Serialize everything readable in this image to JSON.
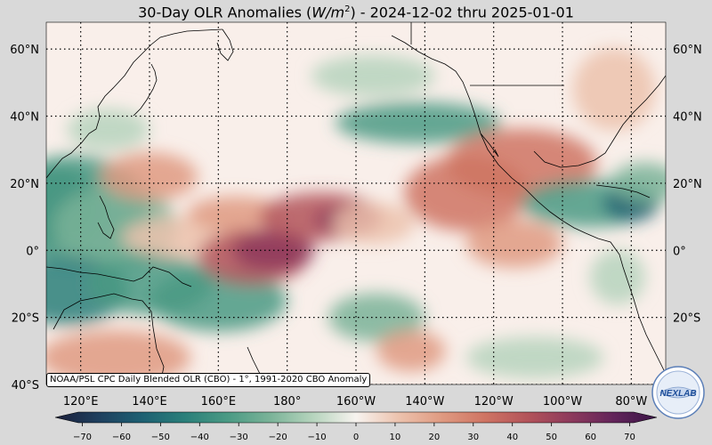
{
  "title": {
    "prefix": "30-Day OLR Anomalies (",
    "unit_base": "W/m",
    "unit_exp": "2",
    "suffix": ") - 2024-12-02 thru 2025-01-01"
  },
  "map": {
    "lat_labels": [
      "60°N",
      "40°N",
      "20°N",
      "0°",
      "20°S",
      "40°S"
    ],
    "lon_labels": [
      "120°E",
      "140°E",
      "160°E",
      "180°",
      "160°W",
      "140°W",
      "120°W",
      "100°W",
      "80°W"
    ],
    "lat_range": [
      -40,
      68
    ],
    "lon_range": [
      110,
      290
    ],
    "grid": "dotted",
    "anomalies": [
      {
        "lon": 112,
        "lat": 13,
        "v": -45,
        "rx": 14,
        "ry": 12
      },
      {
        "lon": 118,
        "lat": 12,
        "v": -35,
        "rx": 22,
        "ry": 16
      },
      {
        "lon": 130,
        "lat": 7,
        "v": -25,
        "rx": 18,
        "ry": 12
      },
      {
        "lon": 116,
        "lat": -12,
        "v": -40,
        "rx": 18,
        "ry": 10
      },
      {
        "lon": 140,
        "lat": -10,
        "v": -35,
        "rx": 18,
        "ry": 9
      },
      {
        "lon": 160,
        "lat": -15,
        "v": -30,
        "rx": 20,
        "ry": 9
      },
      {
        "lon": 150,
        "lat": 4,
        "v": 10,
        "rx": 18,
        "ry": 6
      },
      {
        "lon": 170,
        "lat": -2,
        "v": 40,
        "rx": 16,
        "ry": 8
      },
      {
        "lon": 176,
        "lat": 0,
        "v": 55,
        "rx": 12,
        "ry": 6
      },
      {
        "lon": 165,
        "lat": 11,
        "v": 25,
        "rx": 14,
        "ry": 5
      },
      {
        "lon": 190,
        "lat": 10,
        "v": 45,
        "rx": 18,
        "ry": 7
      },
      {
        "lon": 197,
        "lat": 9,
        "v": 55,
        "rx": 9,
        "ry": 4
      },
      {
        "lon": 205,
        "lat": 8,
        "v": 15,
        "rx": 12,
        "ry": 6
      },
      {
        "lon": 218,
        "lat": 38,
        "v": -30,
        "rx": 24,
        "ry": 6
      },
      {
        "lon": 232,
        "lat": 17,
        "v": 30,
        "rx": 18,
        "ry": 11
      },
      {
        "lon": 248,
        "lat": 26,
        "v": 30,
        "rx": 22,
        "ry": 10
      },
      {
        "lon": 246,
        "lat": 2,
        "v": 25,
        "rx": 14,
        "ry": 7
      },
      {
        "lon": 268,
        "lat": 14,
        "v": -35,
        "rx": 20,
        "ry": 7
      },
      {
        "lon": 280,
        "lat": 14,
        "v": -50,
        "rx": 8,
        "ry": 5
      },
      {
        "lon": 284,
        "lat": 20,
        "v": -25,
        "rx": 10,
        "ry": 6
      },
      {
        "lon": 206,
        "lat": -20,
        "v": -25,
        "rx": 14,
        "ry": 7
      },
      {
        "lon": 216,
        "lat": -30,
        "v": 25,
        "rx": 10,
        "ry": 6
      },
      {
        "lon": 252,
        "lat": -32,
        "v": -15,
        "rx": 20,
        "ry": 6
      },
      {
        "lon": 130,
        "lat": -32,
        "v": 25,
        "rx": 22,
        "ry": 8
      },
      {
        "lon": 140,
        "lat": 22,
        "v": 20,
        "rx": 14,
        "ry": 7
      },
      {
        "lon": 128,
        "lat": 36,
        "v": -10,
        "rx": 12,
        "ry": 6
      },
      {
        "lon": 205,
        "lat": 52,
        "v": -15,
        "rx": 18,
        "ry": 6
      },
      {
        "lon": 275,
        "lat": 48,
        "v": 15,
        "rx": 12,
        "ry": 12
      },
      {
        "lon": 276,
        "lat": -8,
        "v": -15,
        "rx": 8,
        "ry": 8
      }
    ]
  },
  "credit": "NOAA/PSL CPC Daily Blended OLR (CBO) - 1°, 1991-2020 CBO Anomaly",
  "colorbar": {
    "ticks": [
      "−70",
      "−60",
      "−50",
      "−40",
      "−30",
      "−20",
      "−10",
      "0",
      "10",
      "20",
      "30",
      "40",
      "50",
      "60",
      "70"
    ],
    "min": -75,
    "max": 75,
    "colors": [
      "#1b1f3b",
      "#1e3f5e",
      "#1d5f72",
      "#2a7f7a",
      "#4a9a84",
      "#7ab398",
      "#b6d4bd",
      "#f7f3ef",
      "#ecc2ad",
      "#df9a81",
      "#cf7463",
      "#b3535a",
      "#8d3a5c",
      "#62245a",
      "#3a1446"
    ]
  },
  "logo": {
    "text": "NEXLAB"
  }
}
